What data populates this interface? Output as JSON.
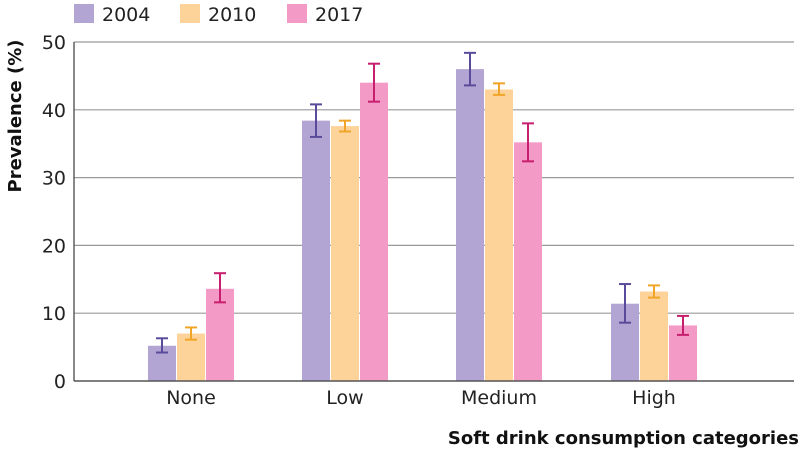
{
  "chart_data": {
    "type": "bar",
    "title": "",
    "xlabel": "Soft drink consumption categories",
    "ylabel": "Prevalence (%)",
    "ylim": [
      0,
      50
    ],
    "yticks": [
      0,
      10,
      20,
      30,
      40,
      50
    ],
    "grid": true,
    "legend_position": "top-left",
    "categories": [
      "None",
      "Low",
      "Medium",
      "High"
    ],
    "series": [
      {
        "name": "2004",
        "color": "#b3a5d3",
        "error_color": "#5a4a9a",
        "values": [
          5.2,
          38.4,
          46.0,
          11.4
        ],
        "error_low": [
          4.2,
          36.0,
          43.6,
          8.6
        ],
        "error_high": [
          6.3,
          40.8,
          48.4,
          14.3
        ]
      },
      {
        "name": "2010",
        "color": "#fdd39a",
        "error_color": "#f0a428",
        "values": [
          7.0,
          37.6,
          43.0,
          13.2
        ],
        "error_low": [
          6.1,
          36.8,
          42.2,
          12.3
        ],
        "error_high": [
          7.9,
          38.4,
          43.9,
          14.1
        ]
      },
      {
        "name": "2017",
        "color": "#f49ac6",
        "error_color": "#c81e6e",
        "values": [
          13.6,
          44.0,
          35.2,
          8.2
        ],
        "error_low": [
          11.6,
          41.2,
          32.4,
          6.8
        ],
        "error_high": [
          15.9,
          46.8,
          38.0,
          9.6
        ]
      }
    ]
  }
}
